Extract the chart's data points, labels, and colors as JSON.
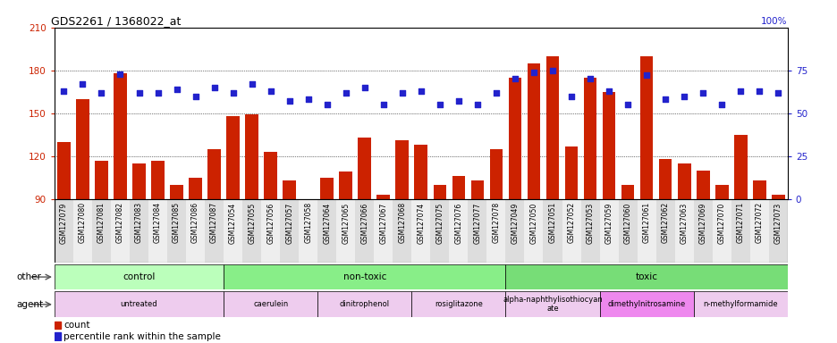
{
  "title": "GDS2261 / 1368022_at",
  "samples": [
    "GSM127079",
    "GSM127080",
    "GSM127081",
    "GSM127082",
    "GSM127083",
    "GSM127084",
    "GSM127085",
    "GSM127086",
    "GSM127087",
    "GSM127054",
    "GSM127055",
    "GSM127056",
    "GSM127057",
    "GSM127058",
    "GSM127064",
    "GSM127065",
    "GSM127066",
    "GSM127067",
    "GSM127068",
    "GSM127074",
    "GSM127075",
    "GSM127076",
    "GSM127077",
    "GSM127078",
    "GSM127049",
    "GSM127050",
    "GSM127051",
    "GSM127052",
    "GSM127053",
    "GSM127059",
    "GSM127060",
    "GSM127061",
    "GSM127062",
    "GSM127063",
    "GSM127069",
    "GSM127070",
    "GSM127071",
    "GSM127072",
    "GSM127073"
  ],
  "counts": [
    130,
    160,
    117,
    178,
    115,
    117,
    100,
    105,
    125,
    148,
    149,
    123,
    103,
    90,
    105,
    109,
    133,
    93,
    131,
    128,
    100,
    106,
    103,
    125,
    175,
    185,
    190,
    127,
    175,
    165,
    100,
    190,
    118,
    115,
    110,
    100,
    135,
    103,
    93
  ],
  "percentile": [
    63,
    67,
    62,
    73,
    62,
    62,
    64,
    60,
    65,
    62,
    67,
    63,
    57,
    58,
    55,
    62,
    65,
    55,
    62,
    63,
    55,
    57,
    55,
    62,
    70,
    74,
    75,
    60,
    70,
    63,
    55,
    72,
    58,
    60,
    62,
    55,
    63,
    63,
    62
  ],
  "ylim_left": [
    90,
    210
  ],
  "ylim_right": [
    0,
    100
  ],
  "yticks_left": [
    90,
    120,
    150,
    180,
    210
  ],
  "yticks_right": [
    0,
    25,
    50,
    75,
    100
  ],
  "bar_color": "#cc2200",
  "dot_color": "#2222cc",
  "groups_other": [
    {
      "label": "control",
      "start": 0,
      "end": 9
    },
    {
      "label": "non-toxic",
      "start": 9,
      "end": 24
    },
    {
      "label": "toxic",
      "start": 24,
      "end": 39
    }
  ],
  "groups_other_colors": [
    "#bbffbb",
    "#88ee88",
    "#77dd77"
  ],
  "groups_agent": [
    {
      "label": "untreated",
      "start": 0,
      "end": 9
    },
    {
      "label": "caerulein",
      "start": 9,
      "end": 14
    },
    {
      "label": "dinitrophenol",
      "start": 14,
      "end": 19
    },
    {
      "label": "rosiglitazone",
      "start": 19,
      "end": 24
    },
    {
      "label": "alpha-naphthylisothiocyan\nate",
      "start": 24,
      "end": 29
    },
    {
      "label": "dimethylnitrosamine",
      "start": 29,
      "end": 34
    },
    {
      "label": "n-methylformamide",
      "start": 34,
      "end": 39
    }
  ],
  "groups_agent_colors": [
    "#eeccee",
    "#eeccee",
    "#eeccee",
    "#eeccee",
    "#eeccee",
    "#ee88ee",
    "#eeccee"
  ],
  "legend_count_label": "count",
  "legend_percentile_label": "percentile rank within the sample",
  "other_label": "other",
  "agent_label": "agent"
}
